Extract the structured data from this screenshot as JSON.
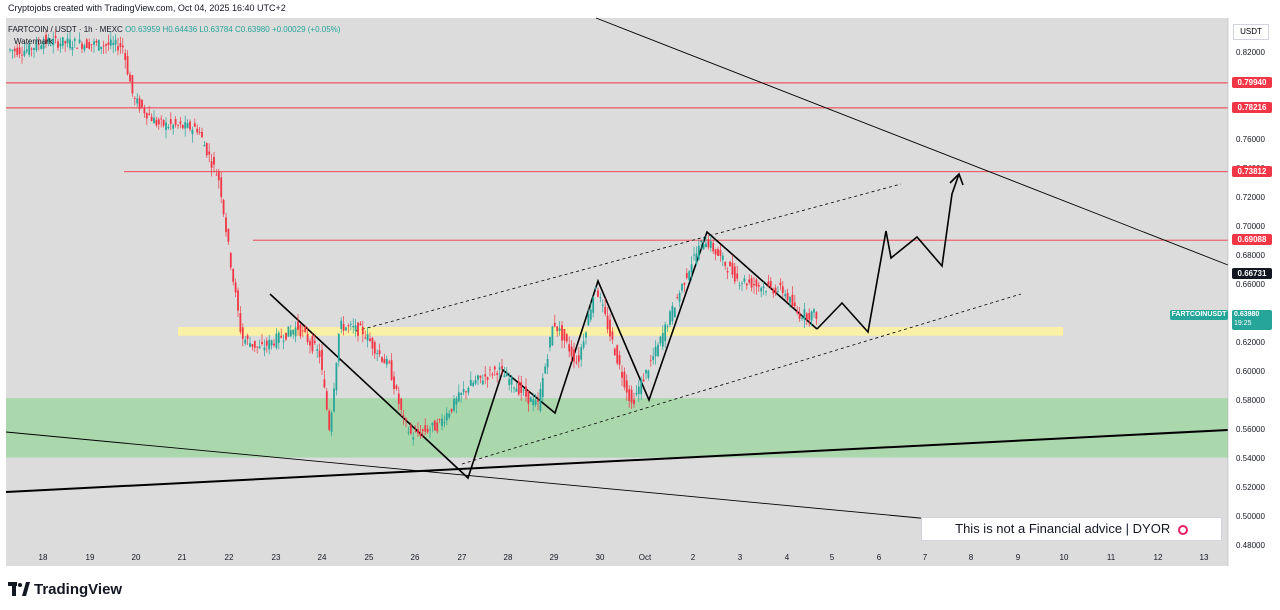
{
  "header": {
    "credit": "Cryptojobs created with TradingView.com, Oct 04, 2025 16:40 UTC+2",
    "symbol_line": "FARTCOIN / USDT · 1h · MEXC",
    "open": "O0.63959",
    "high": "H0.64436",
    "low": "L0.63784",
    "close": "C0.63980",
    "change": "+0.00029 (+0.05%)",
    "watermark": "Watermark"
  },
  "quote_currency": "USDT",
  "price_axis": {
    "ticks": [
      "0.82000",
      "0.80000",
      "0.78000",
      "0.76000",
      "0.74000",
      "0.72000",
      "0.70000",
      "0.68000",
      "0.66000",
      "0.64000",
      "0.62000",
      "0.60000",
      "0.58000",
      "0.56000",
      "0.54000",
      "0.52000",
      "0.50000",
      "0.48000"
    ]
  },
  "price_badges": [
    {
      "label": "0.79940",
      "value": 0.7994,
      "color": "#f23645"
    },
    {
      "label": "0.78216",
      "value": 0.78216,
      "color": "#f23645"
    },
    {
      "label": "0.73812",
      "value": 0.73812,
      "color": "#f23645"
    },
    {
      "label": "0.69088",
      "value": 0.69088,
      "color": "#f23645"
    },
    {
      "label": "0.66731",
      "value": 0.66731,
      "color": "#131722"
    }
  ],
  "current_price": {
    "symbol": "FARTCOINUSDT",
    "price": "0.63980",
    "countdown": "19:25"
  },
  "time_axis": {
    "labels": [
      "18",
      "19",
      "20",
      "21",
      "22",
      "23",
      "24",
      "25",
      "26",
      "27",
      "28",
      "29",
      "30",
      "Oct",
      "2",
      "3",
      "4",
      "5",
      "6",
      "7",
      "8",
      "9",
      "10",
      "11",
      "12",
      "13"
    ]
  },
  "disclaimer": "This is not a Financial advice | DYOR",
  "brand": "TradingView",
  "colors": {
    "up": "#26a69a",
    "down": "#f23645",
    "bg": "#dcdcdc",
    "support_zone": "#a5d6a7",
    "yellow_zone": "#fff59d"
  },
  "chart_data": {
    "type": "line",
    "title": "",
    "xlabel": "",
    "ylabel": "",
    "ylim": [
      0.478,
      0.832
    ],
    "series": [
      {
        "x": [
          "Sep 18",
          "Sep 19",
          "Sep 20",
          "Sep 20",
          "Sep 21",
          "Sep 21",
          "Sep 22",
          "Sep 22",
          "Sep 23",
          "Sep 23",
          "Sep 24",
          "Sep 24",
          "Sep 25",
          "Sep 25",
          "Sep 26",
          "Sep 26",
          "Sep 27",
          "Sep 27",
          "Sep 28",
          "Sep 28",
          "Sep 29",
          "Sep 29",
          "Sep 30",
          "Sep 30",
          "Oct 1",
          "Oct 1",
          "Oct 2",
          "Oct 2",
          "Oct 3",
          "Oct 3",
          "Oct 4",
          "Oct 4"
        ],
        "values": [
          0.822,
          0.828,
          0.788,
          0.771,
          0.766,
          0.758,
          0.732,
          0.672,
          0.623,
          0.631,
          0.612,
          0.599,
          0.628,
          0.603,
          0.566,
          0.556,
          0.561,
          0.588,
          0.602,
          0.586,
          0.576,
          0.613,
          0.636,
          0.603,
          0.583,
          0.617,
          0.693,
          0.667,
          0.662,
          0.658,
          0.645,
          0.6398
        ]
      }
    ],
    "horizontal_levels": [
      0.7994,
      0.78216,
      0.73812,
      0.69088
    ],
    "zones": [
      {
        "name": "support",
        "from": 0.541,
        "to": 0.582
      },
      {
        "name": "demand",
        "from": 0.625,
        "to": 0.631
      }
    ],
    "projection": {
      "x": [
        "Oct 4",
        "Oct 5",
        "Oct 6",
        "Oct 6",
        "Oct 7",
        "Oct 7",
        "Oct 8"
      ],
      "values": [
        0.628,
        0.649,
        0.628,
        0.698,
        0.692,
        0.674,
        0.737
      ]
    }
  }
}
